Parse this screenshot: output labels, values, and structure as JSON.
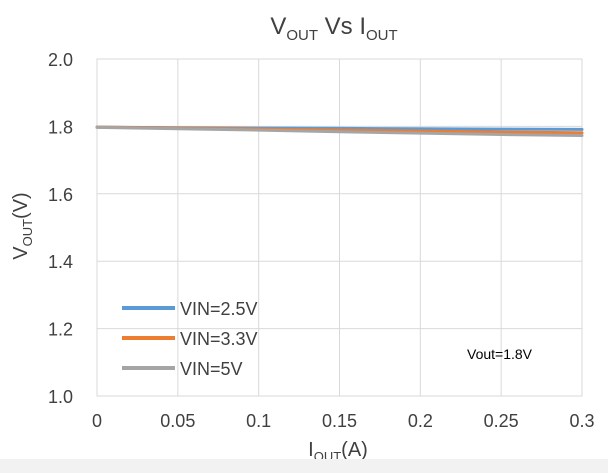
{
  "chart_data": {
    "type": "line",
    "title": {
      "main": "V",
      "sub1": "OUT",
      "mid": " Vs I",
      "sub2": "OUT"
    },
    "xlabel": {
      "main": "I",
      "sub": "OUT",
      "rest": "(A)"
    },
    "ylabel": {
      "main": "V",
      "sub": "OUT",
      "rest": "(V)"
    },
    "xlim": [
      0,
      0.3
    ],
    "ylim": [
      1.0,
      2.0
    ],
    "xticks": [
      0,
      0.05,
      0.1,
      0.15,
      0.2,
      0.25,
      0.3
    ],
    "xtick_labels": [
      "0",
      "0.05",
      "0.1",
      "0.15",
      "0.2",
      "0.25",
      "0.3"
    ],
    "yticks": [
      1.0,
      1.2,
      1.4,
      1.6,
      1.8,
      2.0
    ],
    "ytick_labels": [
      "1.0",
      "1.2",
      "1.4",
      "1.6",
      "1.8",
      "2.0"
    ],
    "grid": true,
    "legend_position": "bottom-left",
    "annotation": "Vout=1.8V",
    "x": [
      0,
      0.05,
      0.1,
      0.15,
      0.2,
      0.25,
      0.3
    ],
    "series": [
      {
        "name": "VIN=2.5V",
        "color": "#5b9bd5",
        "values": [
          1.798,
          1.796,
          1.795,
          1.794,
          1.793,
          1.792,
          1.791
        ]
      },
      {
        "name": "VIN=3.3V",
        "color": "#ed7d31",
        "values": [
          1.798,
          1.795,
          1.792,
          1.789,
          1.786,
          1.783,
          1.781
        ]
      },
      {
        "name": "VIN=5V",
        "color": "#a5a5a5",
        "values": [
          1.797,
          1.793,
          1.789,
          1.784,
          1.78,
          1.776,
          1.773
        ]
      }
    ]
  }
}
